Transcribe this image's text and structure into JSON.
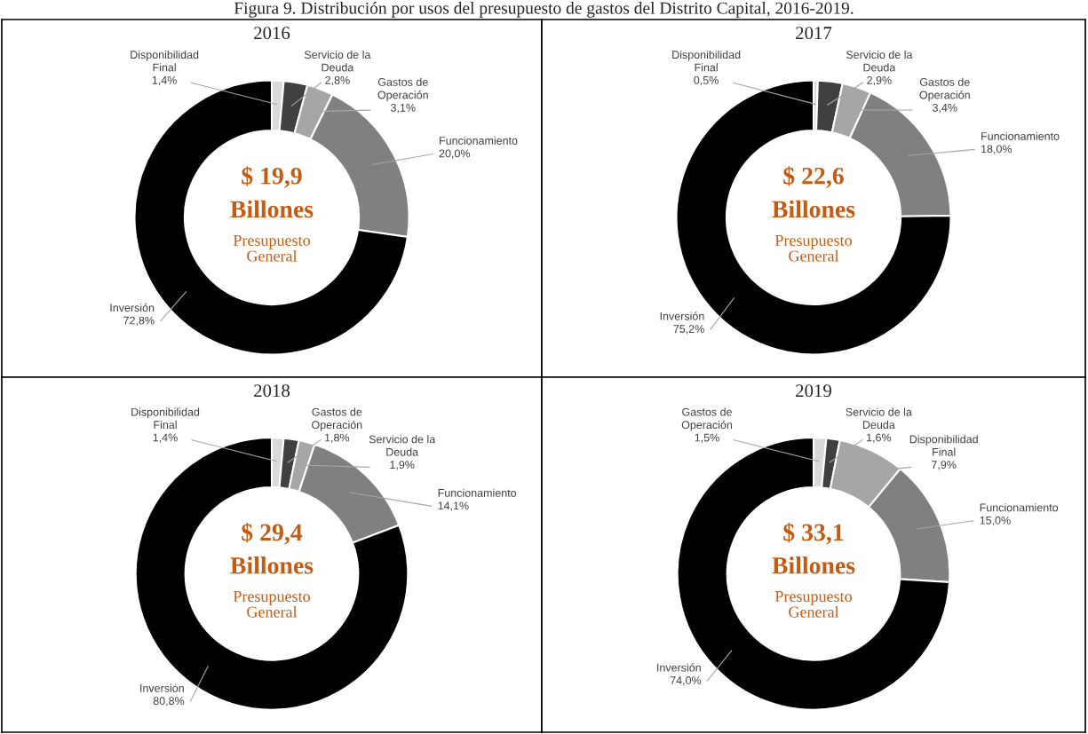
{
  "chart_data": [
    {
      "type": "donut",
      "title": "2016",
      "categories": [
        "Disponibilidad\nFinal",
        "Servicio de la\nDeuda",
        "Gastos de\nOperación",
        "Funcionamiento",
        "Inversión"
      ],
      "values": [
        1.4,
        2.8,
        3.1,
        20.0,
        72.8
      ],
      "value_labels": [
        "1,4%",
        "2,8%",
        "3,1%",
        "20,0%",
        "72,8%"
      ],
      "colors": [
        "#d9d9d9",
        "#404040",
        "#a6a6a6",
        "#808080",
        "#000000"
      ],
      "annotations": [
        "$ 19,9",
        "Billones",
        "Presupuesto\nGeneral",
        "Figura 9. Distribución por usos del presupuesto de gastos del Distrito Capital, 2016-2019."
      ]
    },
    {
      "type": "donut",
      "title": "2017",
      "categories": [
        "Disponibilidad\nFinal",
        "Servicio de la\nDeuda",
        "Gastos de\nOperación",
        "Funcionamiento",
        "Inversión"
      ],
      "values": [
        0.5,
        2.9,
        3.4,
        18.0,
        75.2
      ],
      "value_labels": [
        "0,5%",
        "2,9%",
        "3,4%",
        "18,0%",
        "75,2%"
      ],
      "colors": [
        "#d9d9d9",
        "#404040",
        "#a6a6a6",
        "#808080",
        "#000000"
      ],
      "annotations": [
        "$ 22,6",
        "Billones",
        "Presupuesto\nGeneral"
      ]
    },
    {
      "type": "donut",
      "title": "2018",
      "categories": [
        "Disponibilidad\nFinal",
        "Gastos de\nOperación",
        "Servicio de la\nDeuda",
        "Funcionamiento",
        "Inversión"
      ],
      "values": [
        1.4,
        1.8,
        1.9,
        14.1,
        80.8
      ],
      "value_labels": [
        "1,4%",
        "1,8%",
        "1,9%",
        "14,1%",
        "80,8%"
      ],
      "colors": [
        "#d9d9d9",
        "#404040",
        "#a6a6a6",
        "#808080",
        "#000000"
      ],
      "annotations": [
        "$ 29,4",
        "Billones",
        "Presupuesto\nGeneral"
      ]
    },
    {
      "type": "donut",
      "title": "2019",
      "categories": [
        "Gastos de\nOperación",
        "Servicio de la\nDeuda",
        "Disponibilidad\nFinal",
        "Funcionamiento",
        "Inversión"
      ],
      "values": [
        1.5,
        1.6,
        7.9,
        15.0,
        74.0
      ],
      "value_labels": [
        "1,5%",
        "1,6%",
        "7,9%",
        "15,0%",
        "74,0%"
      ],
      "colors": [
        "#d9d9d9",
        "#404040",
        "#a6a6a6",
        "#808080",
        "#000000"
      ],
      "annotations": [
        "$ 33,1",
        "Billones",
        "Presupuesto\nGeneral"
      ]
    }
  ]
}
